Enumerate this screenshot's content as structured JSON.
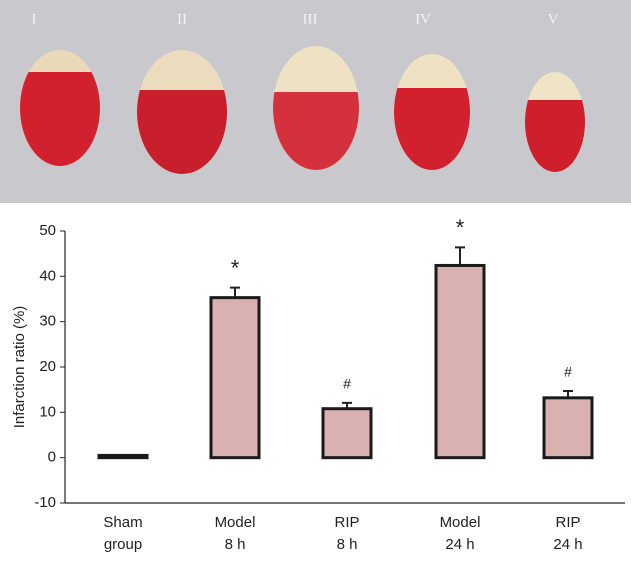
{
  "photo": {
    "labels": [
      "I",
      "II",
      "III",
      "IV",
      "V"
    ]
  },
  "chart_data": {
    "type": "bar",
    "categories": [
      [
        "Sham",
        "group"
      ],
      [
        "Model",
        "8 h"
      ],
      [
        "RIP",
        "8 h"
      ],
      [
        "Model",
        "24 h"
      ],
      [
        "RIP",
        "24 h"
      ]
    ],
    "values": [
      0.5,
      35.3,
      10.8,
      42.4,
      13.2
    ],
    "errors": [
      0,
      2.2,
      1.3,
      4,
      1.5
    ],
    "annotations": [
      "",
      "*",
      "#",
      "*",
      "#"
    ],
    "color": "#d9b1b1",
    "y_label": "Infarction ratio (%)",
    "ylim": [
      -10,
      50
    ],
    "yticks": [
      -10,
      0,
      10,
      20,
      30,
      40,
      50
    ]
  }
}
